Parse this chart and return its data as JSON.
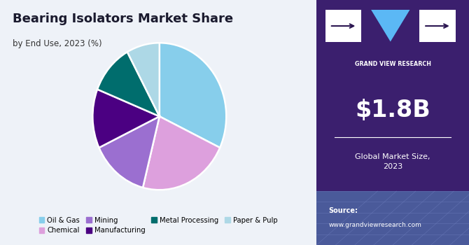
{
  "title": "Bearing Isolators Market Share",
  "subtitle": "by End Use, 2023 (%)",
  "slices": [
    {
      "label": "Oil & Gas",
      "value": 32,
      "color": "#87CEEB"
    },
    {
      "label": "Chemical",
      "value": 22,
      "color": "#DDA0DD"
    },
    {
      "label": "Mining",
      "value": 14,
      "color": "#9B6FD0"
    },
    {
      "label": "Manufacturing",
      "value": 13,
      "color": "#4B0082"
    },
    {
      "label": "Metal Processing",
      "value": 11,
      "color": "#006D6D"
    },
    {
      "label": "Paper & Pulp",
      "value": 8,
      "color": "#ADD8E6"
    }
  ],
  "start_angle": 90,
  "bg_color": "#EEF2F8",
  "right_panel_color": "#3B1F6E",
  "bottom_panel_color": "#4A5A9A",
  "market_size": "$1.8B",
  "market_size_label": "Global Market Size,\n2023",
  "source_label": "Source:",
  "source_url": "www.grandviewresearch.com",
  "legend_items": [
    {
      "label": "Oil & Gas",
      "color": "#87CEEB"
    },
    {
      "label": "Chemical",
      "color": "#DDA0DD"
    },
    {
      "label": "Mining",
      "color": "#9B6FD0"
    },
    {
      "label": "Manufacturing",
      "color": "#4B0082"
    },
    {
      "label": "Metal Processing",
      "color": "#006D6D"
    },
    {
      "label": "Paper & Pulp",
      "color": "#ADD8E6"
    }
  ],
  "gvr_text": "GRAND VIEW RESEARCH",
  "logo_bg": "#3B1F6E",
  "logo_white": "#FFFFFF",
  "logo_blue": "#5BB8F5"
}
